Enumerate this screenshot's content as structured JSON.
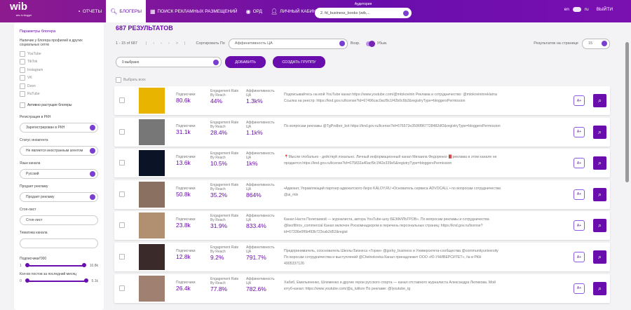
{
  "header": {
    "logo": "wib",
    "logo_sub": "who is blogger",
    "nav": [
      "ОТЧЕТЫ",
      "БЛОГЕРЫ",
      "ПОИСК РЕКЛАМНЫХ РАЗМЕЩЕНИЙ",
      "ОРД",
      "ЛИЧНЫЙ КАБИНЕТ"
    ],
    "audience_label": "Аудитория",
    "audience_value": "2. fd_business_books (wib,...",
    "lang_en": "en",
    "lang_ru": "ru",
    "logout": "ВЫЙТИ"
  },
  "sidebar": {
    "title": "Параметры блогера",
    "profiles_label": "Наличие у блогера профилей в других социальных сетях",
    "networks": [
      "YouTube",
      "TikTok",
      "Instagram",
      "VK",
      "Dzen",
      "RuTube"
    ],
    "growing": "Активно растущие блогеры",
    "rkn_label": "Регистрация в РКН",
    "rkn_value": "Зарегистрирован в РКН",
    "agent_label": "Статус иноагента",
    "agent_value": "Не является иностранным агентом",
    "lang_label": "Язык канала",
    "lang_value": "Русский",
    "ads_label": "Продает рекламу",
    "ads_value": "Продает рекламу",
    "stop_label": "Стоп-лист",
    "stop_placeholder": "Стоп-лист",
    "theme_label": "Тематика канала",
    "subs_label": "Подписчики/'000",
    "subs_min": "1",
    "subs_max": "10.8k",
    "posts_label": "Кол-во постов за последний месяц",
    "posts_min": "0",
    "posts_max": "5.1k"
  },
  "main": {
    "title": "687 РЕЗУЛЬТАТОВ",
    "range": "1 - 15 of 687",
    "sort_label": "Сортировать По",
    "sort_value": "Аффинитивность ЦА",
    "asc": "Возр.",
    "desc": "Убыв.",
    "per_page_label": "Результатов на странице",
    "per_page": "15",
    "selected": "0 выбрано",
    "add": "ДОБАВИТЬ",
    "create_group": "СОЗДАТЬ ГРУППУ",
    "select_all": "Выбрать всех",
    "col_subs": "Подписчики",
    "col_er": "Engagement Rate By Reach",
    "col_aff": "Аффинитивность ЦА",
    "aplus": "A+",
    "rows": [
      {
        "subs": "80.6k",
        "er": "44%",
        "aff": "1.3k%",
        "desc": "Подписывайтесь на мой YouTube канал https://www.youtube.com/@mtokovinin Реклама и сотрудничество: @mtokovininreklama Ссылка на реестр: https://knd.gov.ru/license?id=67496cac0acf9c1f42b0c6b2&registryType=bloggersPermission"
      },
      {
        "subs": "31.1k",
        "er": "28.4%",
        "aff": "1.1k%",
        "desc": "По вопросам рекламы @TgPodbor_bot https://knd.gov.ru/license?id=676572e3506f967728482df2&registryType=bloggersPermission"
      },
      {
        "subs": "13.6k",
        "er": "10.5%",
        "aff": "1k%",
        "desc": "📍Мысли глобально - действуй локально. Личный информационный канал Михаила Федоренко 📕реклама в этом канале не продается https://knd.gov.ru/license?id=675832a40acf9c1f42e339e5&registryType=bloggersPermission"
      },
      {
        "subs": "50.8k",
        "er": "35.2%",
        "aff": "864%",
        "desc": "▪Адвокат, Управляющий партнер адвокатского бюро KALOY.RU ▪Основатель сервиса ADVOCALL ▪ по вопросам сотрудничества @ai_mlx"
      },
      {
        "subs": "23.8k",
        "er": "31.9%",
        "aff": "833.4%",
        "desc": "Канал Насти Полетаевой — журналиста, автора YouTube-шоу БЕЗФИЛЬТРОВ». По вопросам рекламы и сотрудничества @bezfiltrov_commercial Канал включен Роскомнадзором в перечень персональных страниц: https://knd.gov.ru/license?id=67336e0f6b493b723cab2d52&regist"
      },
      {
        "subs": "12.8k",
        "er": "9.2%",
        "aff": "791.7%",
        "desc": "Предприниматель, сооснователь Школы Бизнеса «Горки» @gorky_business и Университета-сообщества @communityuniversity По воросам сотрудничества и выступлений @Chelnokovka Канал принадлежит ООО «Ю-УНИВЕРСИТЕТ», № в РКН 4905337126"
      },
      {
        "subs": "26.4k",
        "er": "77.8%",
        "aff": "782.6%",
        "desc": "Хабиб, Емельяненко, Шлеменко и другие герои русского спорта — канал отставного журналиста Александра Лютикова. Мой ютуб-канал: https://www.youtube.com/@a_lutikov По рекламе: @lyoutube_tg"
      }
    ]
  },
  "colors": {
    "accent": "#6a0dad"
  }
}
